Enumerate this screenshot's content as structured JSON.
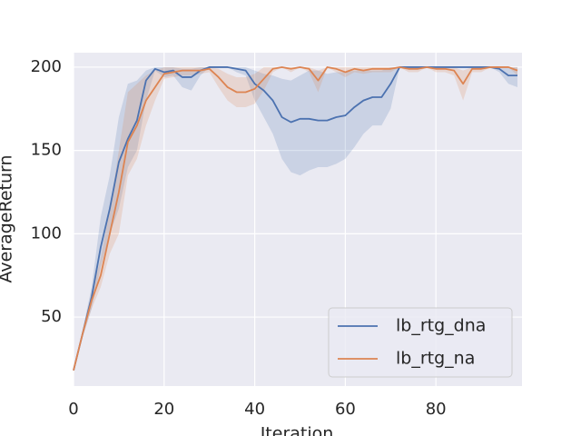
{
  "chart_data": {
    "type": "line",
    "xlabel": "Iteration",
    "ylabel": "AverageReturn",
    "x": [
      0,
      2,
      4,
      6,
      8,
      10,
      12,
      14,
      16,
      18,
      20,
      22,
      24,
      26,
      28,
      30,
      32,
      34,
      36,
      38,
      40,
      42,
      44,
      46,
      48,
      50,
      52,
      54,
      56,
      58,
      60,
      62,
      64,
      66,
      68,
      70,
      72,
      74,
      76,
      78,
      80,
      82,
      84,
      86,
      88,
      90,
      92,
      94,
      96,
      98
    ],
    "xlim": [
      0,
      99
    ],
    "ylim": [
      8.6,
      208.7
    ],
    "xticks": [
      0,
      20,
      40,
      60,
      80
    ],
    "yticks": [
      50,
      100,
      150,
      200
    ],
    "grid": true,
    "legend": "lower right",
    "series": [
      {
        "name": "lb_rtg_dna",
        "color": "#4c72b0",
        "values": [
          18,
          40,
          62,
          92,
          115,
          143,
          157,
          168,
          192,
          199,
          197,
          198,
          194,
          194,
          198,
          200,
          200,
          200,
          199,
          198,
          190,
          186,
          180,
          170,
          167,
          169,
          169,
          168,
          168,
          170,
          171,
          176,
          180,
          182,
          182,
          190,
          200,
          200,
          200,
          200,
          200,
          200,
          200,
          200,
          200,
          200,
          200,
          199,
          195,
          195
        ],
        "lower": [
          18,
          38,
          55,
          80,
          100,
          115,
          140,
          150,
          180,
          198,
          194,
          195,
          188,
          186,
          195,
          200,
          200,
          200,
          197,
          195,
          180,
          170,
          160,
          145,
          137,
          135,
          138,
          140,
          140,
          142,
          145,
          152,
          160,
          165,
          165,
          175,
          200,
          200,
          200,
          200,
          200,
          200,
          200,
          200,
          200,
          200,
          200,
          197,
          190,
          188
        ],
        "upper": [
          18,
          42,
          68,
          110,
          135,
          170,
          190,
          192,
          198,
          200,
          200,
          200,
          199,
          199,
          200,
          200,
          200,
          200,
          200,
          200,
          198,
          196,
          195,
          193,
          192,
          195,
          198,
          198,
          196,
          197,
          197,
          198,
          198,
          198,
          198,
          200,
          200,
          200,
          200,
          200,
          200,
          200,
          200,
          200,
          200,
          200,
          200,
          200,
          200,
          200
        ]
      },
      {
        "name": "lb_rtg_na",
        "color": "#dd8452",
        "values": [
          18,
          40,
          60,
          75,
          100,
          125,
          155,
          165,
          180,
          188,
          196,
          197,
          198,
          198,
          198,
          199,
          194,
          188,
          185,
          185,
          187,
          193,
          199,
          200,
          199,
          200,
          199,
          192,
          200,
          199,
          197,
          199,
          198,
          199,
          199,
          199,
          200,
          199,
          199,
          200,
          199,
          199,
          198,
          190,
          199,
          199,
          200,
          200,
          200,
          198
        ],
        "lower": [
          18,
          38,
          55,
          68,
          88,
          100,
          135,
          145,
          165,
          180,
          193,
          194,
          195,
          195,
          196,
          197,
          188,
          180,
          176,
          176,
          178,
          186,
          197,
          200,
          197,
          200,
          197,
          185,
          200,
          197,
          194,
          197,
          196,
          197,
          197,
          197,
          200,
          197,
          197,
          200,
          197,
          197,
          195,
          180,
          197,
          197,
          200,
          200,
          200,
          195
        ],
        "upper": [
          18,
          42,
          65,
          85,
          115,
          150,
          185,
          190,
          195,
          198,
          200,
          200,
          200,
          200,
          200,
          200,
          199,
          196,
          194,
          194,
          196,
          200,
          200,
          200,
          200,
          200,
          200,
          198,
          200,
          200,
          200,
          200,
          200,
          200,
          200,
          200,
          200,
          200,
          200,
          200,
          200,
          200,
          200,
          198,
          200,
          200,
          200,
          200,
          200,
          200
        ]
      }
    ]
  }
}
